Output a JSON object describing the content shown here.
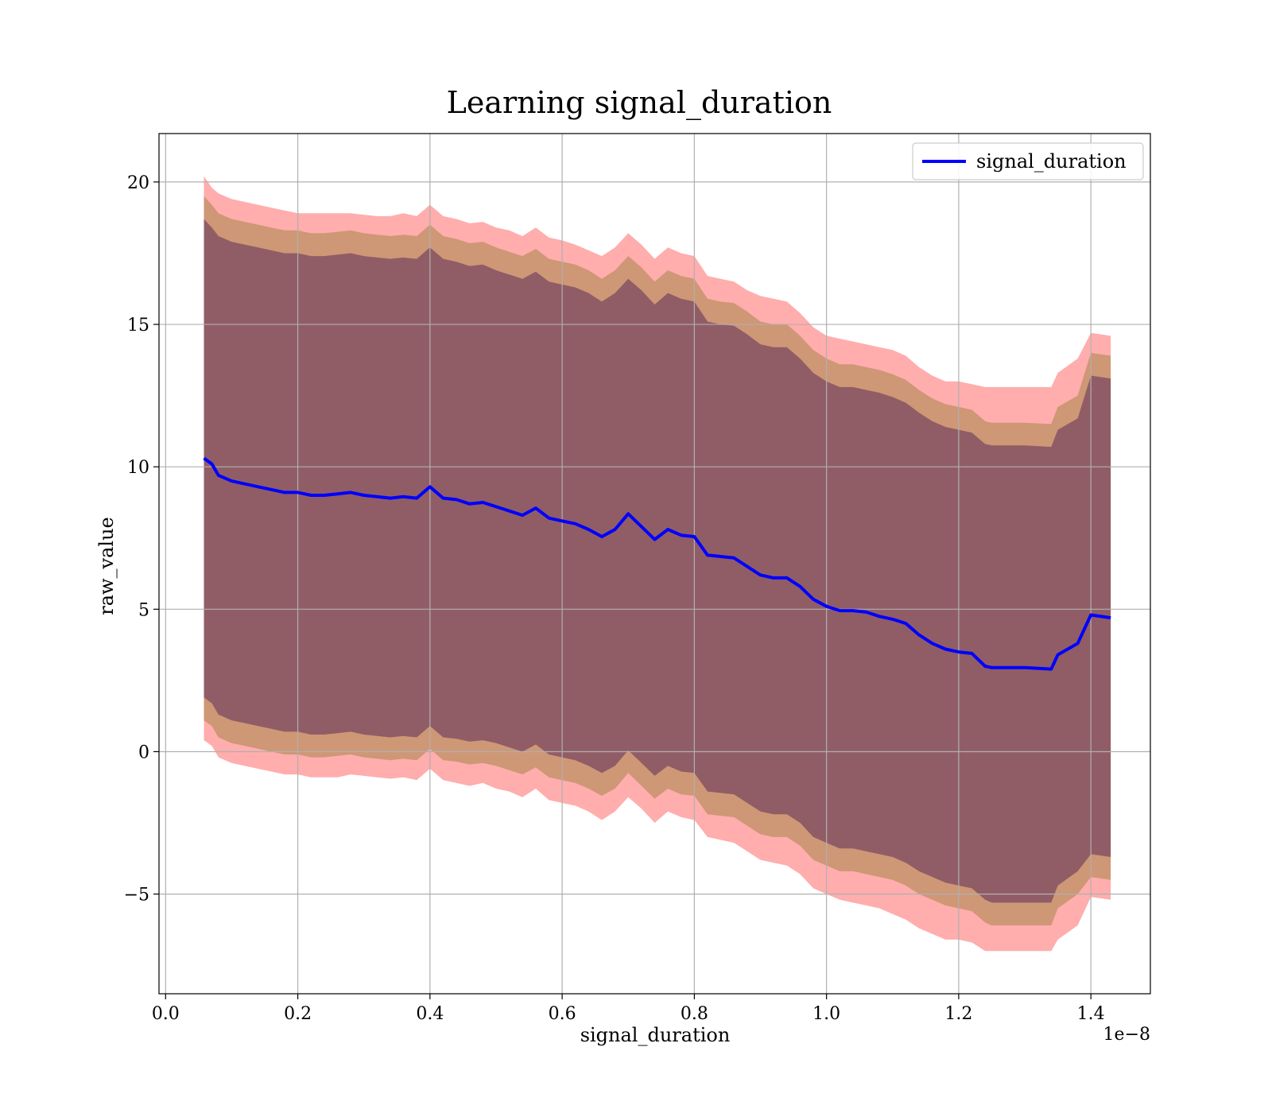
{
  "chart_data": {
    "type": "line",
    "title": "Learning signal_duration",
    "xlabel": "signal_duration",
    "ylabel": "raw_value",
    "x_offset_label": "1e−8",
    "x_scale": 1e-08,
    "xlim": [
      -0.01,
      1.49
    ],
    "ylim": [
      -8.5,
      21.7
    ],
    "xticks": [
      0.0,
      0.2,
      0.4,
      0.6,
      0.8,
      1.0,
      1.2,
      1.4
    ],
    "xtick_labels": [
      "0.0",
      "0.2",
      "0.4",
      "0.6",
      "0.8",
      "1.0",
      "1.2",
      "1.4"
    ],
    "yticks": [
      -5,
      0,
      5,
      10,
      15,
      20
    ],
    "ytick_labels": [
      "−5",
      "0",
      "5",
      "10",
      "15",
      "20"
    ],
    "grid": true,
    "legend_position": "top-right",
    "x": [
      0.058,
      0.07,
      0.08,
      0.1,
      0.12,
      0.14,
      0.16,
      0.18,
      0.2,
      0.22,
      0.24,
      0.26,
      0.28,
      0.3,
      0.32,
      0.34,
      0.36,
      0.38,
      0.4,
      0.42,
      0.44,
      0.46,
      0.48,
      0.5,
      0.52,
      0.54,
      0.56,
      0.58,
      0.6,
      0.62,
      0.64,
      0.66,
      0.68,
      0.7,
      0.72,
      0.74,
      0.76,
      0.78,
      0.8,
      0.82,
      0.84,
      0.86,
      0.88,
      0.9,
      0.92,
      0.94,
      0.96,
      0.98,
      1.0,
      1.02,
      1.04,
      1.06,
      1.08,
      1.1,
      1.12,
      1.14,
      1.16,
      1.18,
      1.2,
      1.22,
      1.24,
      1.25,
      1.3,
      1.34,
      1.35,
      1.38,
      1.4,
      1.43
    ],
    "series": [
      {
        "name": "signal_duration",
        "color": "#0000ff",
        "values": [
          10.3,
          10.1,
          9.7,
          9.5,
          9.4,
          9.3,
          9.2,
          9.1,
          9.1,
          9.0,
          9.0,
          9.05,
          9.1,
          9.0,
          8.95,
          8.9,
          8.95,
          8.9,
          9.3,
          8.9,
          8.85,
          8.7,
          8.75,
          8.6,
          8.45,
          8.3,
          8.55,
          8.2,
          8.1,
          8.0,
          7.8,
          7.55,
          7.8,
          8.35,
          7.9,
          7.45,
          7.8,
          7.6,
          7.55,
          6.9,
          6.85,
          6.8,
          6.5,
          6.2,
          6.1,
          6.1,
          5.8,
          5.35,
          5.1,
          4.95,
          4.95,
          4.9,
          4.75,
          4.65,
          4.5,
          4.1,
          3.8,
          3.6,
          3.5,
          3.45,
          3.0,
          2.95,
          2.95,
          2.9,
          3.4,
          3.8,
          4.8,
          4.7
        ]
      }
    ],
    "bands": [
      {
        "color": "#ff0000",
        "opacity": 0.32,
        "upper": [
          20.2,
          19.8,
          19.6,
          19.4,
          19.3,
          19.2,
          19.1,
          19.0,
          18.9,
          18.9,
          18.9,
          18.9,
          18.9,
          18.85,
          18.8,
          18.8,
          18.9,
          18.8,
          19.2,
          18.8,
          18.7,
          18.55,
          18.6,
          18.4,
          18.3,
          18.1,
          18.4,
          18.05,
          17.95,
          17.8,
          17.6,
          17.4,
          17.7,
          18.2,
          17.8,
          17.3,
          17.7,
          17.5,
          17.4,
          16.7,
          16.6,
          16.5,
          16.2,
          16.0,
          15.9,
          15.8,
          15.4,
          14.9,
          14.6,
          14.5,
          14.4,
          14.3,
          14.2,
          14.1,
          13.9,
          13.5,
          13.2,
          13.0,
          13.0,
          12.9,
          12.8,
          12.8,
          12.8,
          12.8,
          13.3,
          13.8,
          14.7,
          14.6
        ],
        "lower": [
          0.4,
          0.2,
          -0.2,
          -0.4,
          -0.5,
          -0.6,
          -0.7,
          -0.8,
          -0.8,
          -0.9,
          -0.9,
          -0.9,
          -0.8,
          -0.85,
          -0.9,
          -0.95,
          -0.9,
          -1.0,
          -0.6,
          -1.0,
          -1.1,
          -1.2,
          -1.1,
          -1.3,
          -1.4,
          -1.6,
          -1.3,
          -1.7,
          -1.8,
          -1.9,
          -2.1,
          -2.4,
          -2.1,
          -1.6,
          -2.0,
          -2.5,
          -2.1,
          -2.3,
          -2.4,
          -3.0,
          -3.1,
          -3.2,
          -3.5,
          -3.8,
          -3.9,
          -4.0,
          -4.3,
          -4.8,
          -5.0,
          -5.2,
          -5.3,
          -5.4,
          -5.5,
          -5.7,
          -5.9,
          -6.2,
          -6.4,
          -6.6,
          -6.6,
          -6.7,
          -7.0,
          -7.0,
          -7.0,
          -7.0,
          -6.6,
          -6.1,
          -5.1,
          -5.2
        ]
      },
      {
        "color": "#8b7a2b",
        "opacity": 0.42,
        "upper": [
          19.5,
          19.2,
          18.9,
          18.7,
          18.6,
          18.5,
          18.4,
          18.3,
          18.3,
          18.2,
          18.2,
          18.25,
          18.3,
          18.2,
          18.15,
          18.1,
          18.15,
          18.1,
          18.5,
          18.1,
          18.0,
          17.85,
          17.9,
          17.7,
          17.55,
          17.4,
          17.65,
          17.3,
          17.2,
          17.1,
          16.9,
          16.6,
          16.9,
          17.4,
          17.0,
          16.5,
          16.9,
          16.7,
          16.6,
          15.9,
          15.8,
          15.75,
          15.45,
          15.1,
          15.0,
          15.0,
          14.6,
          14.1,
          13.8,
          13.6,
          13.6,
          13.5,
          13.4,
          13.25,
          13.05,
          12.7,
          12.4,
          12.2,
          12.1,
          12.0,
          11.6,
          11.55,
          11.55,
          11.5,
          12.1,
          12.5,
          14.0,
          13.9
        ],
        "lower": [
          1.1,
          0.9,
          0.5,
          0.3,
          0.2,
          0.1,
          0.0,
          -0.1,
          -0.1,
          -0.2,
          -0.2,
          -0.15,
          -0.1,
          -0.2,
          -0.25,
          -0.3,
          -0.25,
          -0.3,
          0.1,
          -0.3,
          -0.35,
          -0.45,
          -0.4,
          -0.5,
          -0.65,
          -0.8,
          -0.55,
          -0.9,
          -1.0,
          -1.1,
          -1.3,
          -1.55,
          -1.3,
          -0.75,
          -1.2,
          -1.65,
          -1.3,
          -1.5,
          -1.55,
          -2.2,
          -2.25,
          -2.3,
          -2.6,
          -2.9,
          -3.0,
          -3.0,
          -3.3,
          -3.8,
          -4.0,
          -4.2,
          -4.2,
          -4.3,
          -4.4,
          -4.5,
          -4.7,
          -5.0,
          -5.2,
          -5.4,
          -5.5,
          -5.6,
          -6.0,
          -6.1,
          -6.1,
          -6.1,
          -5.5,
          -5.0,
          -4.4,
          -4.5
        ]
      },
      {
        "color": "#6b3a5c",
        "opacity": 0.62,
        "upper": [
          18.7,
          18.4,
          18.1,
          17.9,
          17.8,
          17.7,
          17.6,
          17.5,
          17.5,
          17.4,
          17.4,
          17.45,
          17.5,
          17.4,
          17.35,
          17.3,
          17.35,
          17.3,
          17.7,
          17.3,
          17.2,
          17.05,
          17.1,
          16.9,
          16.75,
          16.6,
          16.85,
          16.5,
          16.4,
          16.3,
          16.1,
          15.8,
          16.1,
          16.6,
          16.2,
          15.7,
          16.1,
          15.9,
          15.8,
          15.1,
          15.0,
          14.95,
          14.65,
          14.3,
          14.2,
          14.2,
          13.8,
          13.3,
          13.0,
          12.8,
          12.8,
          12.7,
          12.6,
          12.45,
          12.25,
          11.9,
          11.6,
          11.4,
          11.3,
          11.2,
          10.8,
          10.75,
          10.75,
          10.7,
          11.3,
          11.7,
          13.2,
          13.1
        ],
        "lower": [
          1.9,
          1.7,
          1.3,
          1.1,
          1.0,
          0.9,
          0.8,
          0.7,
          0.7,
          0.6,
          0.6,
          0.65,
          0.7,
          0.6,
          0.55,
          0.5,
          0.55,
          0.5,
          0.9,
          0.5,
          0.45,
          0.35,
          0.4,
          0.3,
          0.15,
          0.0,
          0.25,
          -0.1,
          -0.2,
          -0.3,
          -0.5,
          -0.75,
          -0.5,
          0.05,
          -0.4,
          -0.85,
          -0.5,
          -0.7,
          -0.75,
          -1.4,
          -1.45,
          -1.5,
          -1.8,
          -2.1,
          -2.2,
          -2.2,
          -2.5,
          -3.0,
          -3.2,
          -3.4,
          -3.4,
          -3.5,
          -3.6,
          -3.7,
          -3.9,
          -4.2,
          -4.4,
          -4.6,
          -4.7,
          -4.8,
          -5.2,
          -5.3,
          -5.3,
          -5.3,
          -4.7,
          -4.2,
          -3.6,
          -3.7
        ]
      }
    ]
  }
}
